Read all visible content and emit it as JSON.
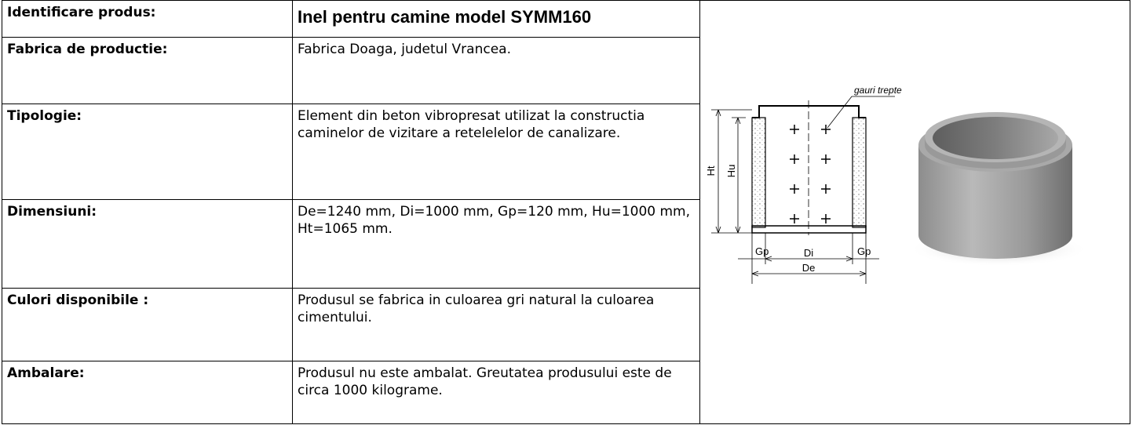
{
  "table": {
    "rows": [
      [
        "Identificare produs:",
        "Inel pentru camine model SYMM160"
      ],
      [
        "Fabrica de productie:",
        "Fabrica Doaga, judetul Vrancea."
      ],
      [
        "Tipologie:",
        "Element din beton vibropresat utilizat la constructia caminelor de vizitare a retelelelor de canalizare."
      ],
      [
        "Dimensiuni:",
        "De=1240 mm, Di=1000 mm, Gp=120 mm, Hu=1000 mm, Ht=1065 mm."
      ],
      [
        "Culori disponibile :",
        "Produsul se fabrica in culoarea gri natural la culoarea cimentului."
      ],
      [
        "Ambalare:",
        "Produsul nu este ambalat. Greutatea produsului este de circa 1000 kilograme."
      ]
    ]
  },
  "diagram": {
    "callout": "gauri trepte",
    "ht": "Ht",
    "hu": "Hu",
    "gp_left": "Gp",
    "di": "Di",
    "gp_right": "Gp",
    "de": "De"
  }
}
